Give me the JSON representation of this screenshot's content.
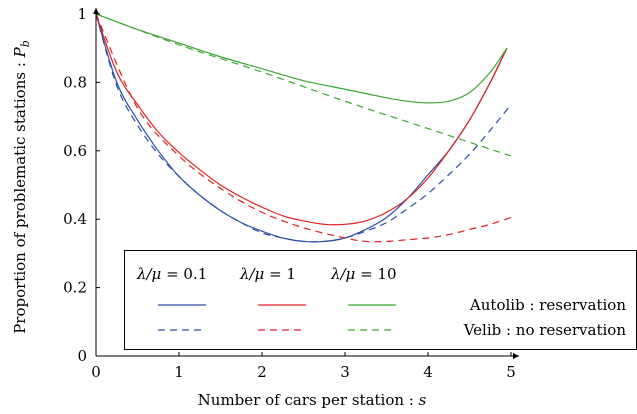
{
  "chart_data": {
    "type": "line",
    "xlabel": "Number of cars per station : ",
    "xlabel_var": "s",
    "ylabel": "Proportion of problematic stations : ",
    "ylabel_var": "P",
    "ylabel_sub": "b",
    "xlim": [
      0,
      5
    ],
    "ylim": [
      0,
      1
    ],
    "xticks": [
      "0",
      "1",
      "2",
      "3",
      "4",
      "5"
    ],
    "yticks": [
      "0",
      "0.2",
      "0.4",
      "0.6",
      "0.8",
      "1"
    ],
    "grid": false,
    "legend": {
      "placement": "lower-left",
      "column_headers": [
        {
          "symbol": "λ/μ",
          "value": "= 0.1"
        },
        {
          "symbol": "λ/μ",
          "value": "= 1"
        },
        {
          "symbol": "λ/μ",
          "value": "= 10"
        }
      ],
      "row_labels": [
        "Autolib : reservation",
        "Velib : no reservation"
      ]
    },
    "series": [
      {
        "group": "Autolib : reservation",
        "ratio": "0.1",
        "color": "#2b4fa8",
        "dash": false,
        "x": [
          0,
          0.25,
          0.5,
          0.75,
          1,
          1.25,
          1.5,
          1.75,
          2,
          2.25,
          2.5,
          2.75,
          3,
          3.25,
          3.5,
          3.75,
          4,
          4.25,
          4.5,
          4.75,
          4.95
        ],
        "y": [
          1.0,
          0.8,
          0.69,
          0.6,
          0.525,
          0.47,
          0.425,
          0.39,
          0.365,
          0.345,
          0.335,
          0.335,
          0.345,
          0.37,
          0.405,
          0.46,
          0.53,
          0.6,
          0.69,
          0.8,
          0.9
        ]
      },
      {
        "group": "Autolib : reservation",
        "ratio": "1",
        "color": "#e02020",
        "dash": false,
        "x": [
          0,
          0.25,
          0.5,
          0.75,
          1,
          1.25,
          1.5,
          1.75,
          2,
          2.25,
          2.5,
          2.75,
          3,
          3.25,
          3.5,
          3.75,
          4,
          4.25,
          4.5,
          4.75,
          4.95
        ],
        "y": [
          1.0,
          0.83,
          0.735,
          0.655,
          0.595,
          0.545,
          0.5,
          0.465,
          0.435,
          0.41,
          0.395,
          0.385,
          0.385,
          0.395,
          0.42,
          0.46,
          0.52,
          0.6,
          0.69,
          0.8,
          0.9
        ]
      },
      {
        "group": "Autolib : reservation",
        "ratio": "10",
        "color": "#3aa832",
        "dash": false,
        "x": [
          0,
          0.5,
          1,
          1.5,
          2,
          2.5,
          3,
          3.5,
          3.75,
          4,
          4.25,
          4.5,
          4.75,
          4.95
        ],
        "y": [
          1.0,
          0.955,
          0.915,
          0.875,
          0.84,
          0.805,
          0.78,
          0.755,
          0.745,
          0.74,
          0.745,
          0.77,
          0.83,
          0.9
        ]
      },
      {
        "group": "Velib : no reservation",
        "ratio": "0.1",
        "color": "#2b4fa8",
        "dash": true,
        "x": [
          0,
          0.25,
          0.5,
          0.75,
          1,
          1.25,
          1.5,
          1.75,
          2,
          2.25,
          2.5,
          2.75,
          3,
          3.25,
          3.5,
          3.75,
          4,
          4.25,
          4.5,
          4.75,
          5
        ],
        "y": [
          1.0,
          0.79,
          0.675,
          0.59,
          0.525,
          0.47,
          0.425,
          0.39,
          0.36,
          0.345,
          0.335,
          0.335,
          0.345,
          0.365,
          0.39,
          0.43,
          0.475,
          0.53,
          0.59,
          0.66,
          0.735
        ]
      },
      {
        "group": "Velib : no reservation",
        "ratio": "1",
        "color": "#e02020",
        "dash": true,
        "x": [
          0,
          0.5,
          1,
          1.5,
          2,
          2.5,
          3,
          3.25,
          3.5,
          3.75,
          4,
          4.25,
          4.5,
          4.75,
          5
        ],
        "y": [
          1.0,
          0.725,
          0.585,
          0.49,
          0.42,
          0.375,
          0.345,
          0.335,
          0.335,
          0.34,
          0.345,
          0.355,
          0.37,
          0.385,
          0.405
        ]
      },
      {
        "group": "Velib : no reservation",
        "ratio": "10",
        "color": "#3aa832",
        "dash": true,
        "x": [
          0,
          1,
          2,
          3,
          4,
          5
        ],
        "y": [
          1.0,
          0.91,
          0.83,
          0.745,
          0.665,
          0.585
        ]
      }
    ]
  }
}
